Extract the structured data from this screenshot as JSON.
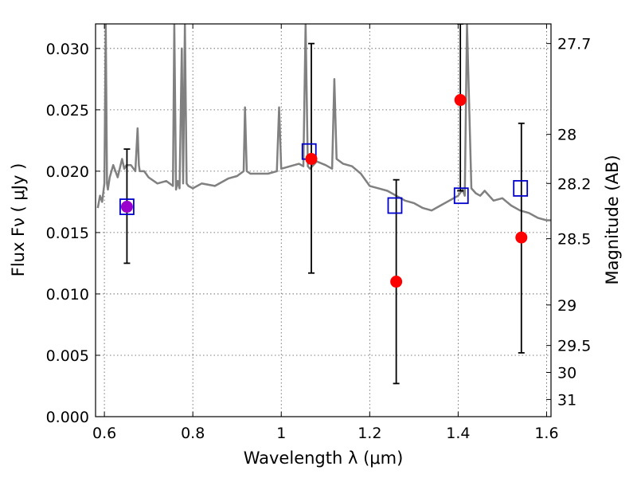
{
  "chart_data": {
    "type": "scatter",
    "xlim": [
      0.58,
      1.61
    ],
    "ylim": [
      0.0,
      0.032
    ],
    "grid": true,
    "x_ticks": [
      0.6,
      0.8,
      1.0,
      1.2,
      1.4,
      1.6
    ],
    "x_tick_labels": [
      "0.6",
      "0.8",
      "1",
      "1.2",
      "1.4",
      "1.6"
    ],
    "y_ticks": [
      0.0,
      0.005,
      0.01,
      0.015,
      0.02,
      0.025,
      0.03
    ],
    "y_tick_labels": [
      "0.000",
      "0.005",
      "0.010",
      "0.015",
      "0.020",
      "0.025",
      "0.030"
    ],
    "xlabel": "Wavelength λ (μm)",
    "ylabel": "Flux Fν ( μJy )",
    "y2label": "Magnitude (AB)",
    "y2_ticks": [
      {
        "label": "27.7",
        "flux": 0.0304
      },
      {
        "label": "28",
        "flux": 0.023
      },
      {
        "label": "28.2",
        "flux": 0.019
      },
      {
        "label": "28.5",
        "flux": 0.0145
      },
      {
        "label": "29",
        "flux": 0.0091
      },
      {
        "label": "29.5",
        "flux": 0.0058
      },
      {
        "label": "30",
        "flux": 0.0036
      },
      {
        "label": "31",
        "flux": 0.0014
      }
    ],
    "colors": {
      "model": "#808080",
      "observed": "#ff0000",
      "synthetic": "#0000cc",
      "overlap": "#9900cc",
      "errorbar": "#000000"
    },
    "model_spectrum": {
      "x": [
        0.585,
        0.59,
        0.595,
        0.6,
        0.603,
        0.606,
        0.608,
        0.612,
        0.62,
        0.63,
        0.64,
        0.645,
        0.65,
        0.66,
        0.67,
        0.675,
        0.678,
        0.68,
        0.69,
        0.7,
        0.72,
        0.74,
        0.755,
        0.758,
        0.762,
        0.766,
        0.77,
        0.775,
        0.778,
        0.782,
        0.786,
        0.79,
        0.8,
        0.82,
        0.85,
        0.88,
        0.9,
        0.915,
        0.918,
        0.922,
        0.93,
        0.95,
        0.97,
        0.99,
        0.995,
        1.0,
        1.02,
        1.04,
        1.05,
        1.055,
        1.06,
        1.065,
        1.08,
        1.1,
        1.115,
        1.12,
        1.125,
        1.14,
        1.16,
        1.18,
        1.2,
        1.22,
        1.24,
        1.26,
        1.28,
        1.3,
        1.32,
        1.34,
        1.36,
        1.38,
        1.4,
        1.41,
        1.415,
        1.42,
        1.43,
        1.44,
        1.45,
        1.46,
        1.48,
        1.5,
        1.52,
        1.54,
        1.56,
        1.58,
        1.6,
        1.61
      ],
      "y": [
        0.017,
        0.018,
        0.0175,
        0.019,
        0.032,
        0.019,
        0.0185,
        0.0195,
        0.0205,
        0.0195,
        0.021,
        0.0202,
        0.0205,
        0.0205,
        0.02,
        0.0235,
        0.0205,
        0.02,
        0.02,
        0.0195,
        0.019,
        0.0192,
        0.0188,
        0.032,
        0.0185,
        0.0192,
        0.0186,
        0.03,
        0.019,
        0.032,
        0.019,
        0.0188,
        0.0186,
        0.019,
        0.0188,
        0.0194,
        0.0196,
        0.02,
        0.0252,
        0.02,
        0.0198,
        0.0198,
        0.0198,
        0.02,
        0.0252,
        0.0202,
        0.0204,
        0.0206,
        0.0204,
        0.032,
        0.0204,
        0.0202,
        0.0208,
        0.0205,
        0.0202,
        0.0275,
        0.021,
        0.0206,
        0.0204,
        0.0198,
        0.0188,
        0.0186,
        0.0184,
        0.018,
        0.0176,
        0.0174,
        0.017,
        0.0168,
        0.0172,
        0.0176,
        0.018,
        0.0185,
        0.018,
        0.032,
        0.0186,
        0.0182,
        0.018,
        0.0184,
        0.0176,
        0.0178,
        0.0172,
        0.0168,
        0.0166,
        0.0162,
        0.016,
        0.016
      ]
    },
    "observed": {
      "x": [
        0.651,
        1.068,
        1.26,
        1.405,
        1.543
      ],
      "y": [
        0.0171,
        0.021,
        0.011,
        0.0258,
        0.0146
      ],
      "err_low": [
        0.0125,
        0.0117,
        0.0027,
        0.0184,
        0.0052
      ],
      "err_high": [
        0.0218,
        0.0304,
        0.0193,
        0.032,
        0.0239
      ]
    },
    "synthetic": {
      "x": [
        0.651,
        1.063,
        1.257,
        1.407,
        1.541
      ],
      "y": [
        0.0171,
        0.0216,
        0.0172,
        0.018,
        0.0186
      ]
    }
  }
}
